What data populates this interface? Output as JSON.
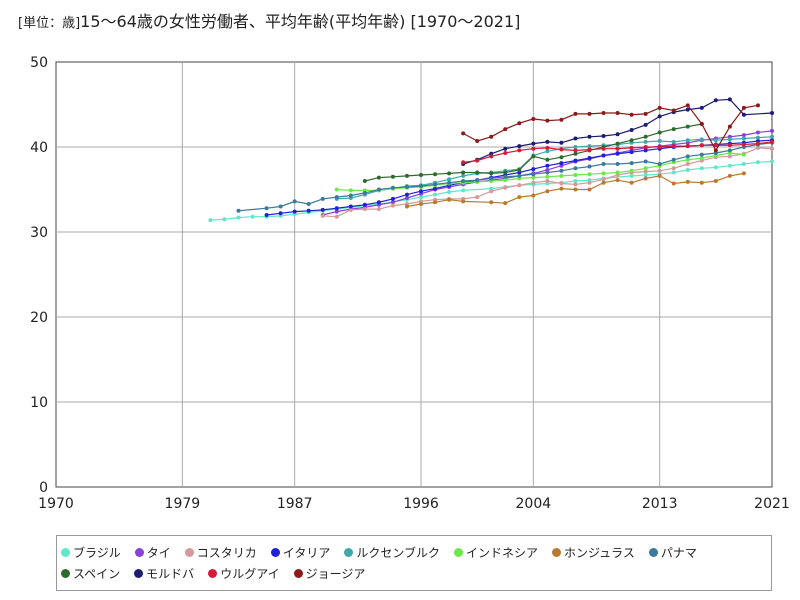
{
  "chart_data": {
    "type": "line",
    "title": "15〜64歳の女性労働者、平均年齢(平均年齢) [1970〜2021]",
    "unit_label": "[単位：歳]",
    "xlabel": "",
    "ylabel": "",
    "xlim": [
      1970,
      2021
    ],
    "ylim": [
      0,
      50
    ],
    "x_ticks": [
      1970,
      1979,
      1987,
      1996,
      2004,
      2013,
      2021
    ],
    "y_ticks": [
      0,
      10,
      20,
      30,
      40,
      50
    ],
    "grid": true,
    "legend_position": "bottom",
    "series": [
      {
        "name": "ブラジル",
        "color": "#5ee8c8",
        "x": [
          1981,
          1982,
          1983,
          1984,
          1985,
          1986,
          1987,
          1988,
          1989,
          1990,
          1992,
          1993,
          1995,
          1996,
          1997,
          1998,
          1999,
          2001,
          2002,
          2003,
          2004,
          2005,
          2006,
          2007,
          2008,
          2009,
          2011,
          2012,
          2013,
          2014,
          2015,
          2016,
          2017,
          2018,
          2019,
          2020,
          2021
        ],
        "y": [
          31.4,
          31.5,
          31.7,
          31.8,
          31.8,
          31.9,
          32.1,
          32.3,
          32.5,
          32.7,
          33.1,
          33.3,
          33.8,
          34.1,
          34.4,
          34.7,
          34.9,
          35.1,
          35.3,
          35.5,
          35.6,
          35.7,
          35.8,
          36.0,
          36.1,
          36.3,
          36.6,
          36.7,
          36.8,
          37.0,
          37.3,
          37.5,
          37.6,
          37.8,
          38.0,
          38.2,
          38.3
        ]
      },
      {
        "name": "タイ",
        "color": "#8a3fd8",
        "x": [
          1989,
          1990,
          1991,
          1992,
          1993,
          1994,
          1995,
          1996,
          1997,
          1998,
          1999,
          2000,
          2001,
          2002,
          2003,
          2004,
          2005,
          2006,
          2007,
          2008,
          2009,
          2010,
          2011,
          2012,
          2013,
          2014,
          2015,
          2016,
          2017,
          2018,
          2019,
          2020,
          2021
        ],
        "y": [
          32.0,
          32.4,
          32.7,
          32.9,
          33.2,
          33.5,
          34.0,
          34.5,
          35.0,
          35.3,
          35.6,
          35.9,
          36.1,
          36.3,
          36.6,
          36.9,
          37.3,
          37.8,
          38.3,
          38.6,
          39.0,
          39.3,
          39.6,
          39.9,
          40.1,
          40.3,
          40.5,
          40.8,
          41.0,
          41.2,
          41.4,
          41.7,
          41.9
        ]
      },
      {
        "name": "コスタリカ",
        "color": "#d49a9a",
        "x": [
          1989,
          1990,
          1991,
          1992,
          1993,
          1994,
          1995,
          1996,
          1997,
          1998,
          1999,
          2000,
          2001,
          2002,
          2003,
          2004,
          2005,
          2006,
          2007,
          2008,
          2009,
          2010,
          2011,
          2012,
          2013,
          2014,
          2015,
          2016,
          2017,
          2018,
          2019,
          2020,
          2021
        ],
        "y": [
          31.9,
          31.8,
          32.6,
          32.7,
          32.7,
          33.1,
          33.3,
          33.6,
          33.8,
          33.9,
          33.9,
          34.1,
          34.8,
          35.2,
          35.5,
          35.8,
          36.0,
          35.7,
          35.6,
          35.8,
          36.2,
          36.7,
          37.0,
          37.1,
          37.2,
          37.5,
          38.0,
          38.4,
          38.8,
          38.9,
          39.2,
          39.9,
          39.8
        ]
      },
      {
        "name": "イタリア",
        "color": "#2020d8",
        "x": [
          1985,
          1986,
          1987,
          1988,
          1989,
          1990,
          1991,
          1992,
          1993,
          1994,
          1995,
          1996,
          1997,
          1998,
          1999,
          2000,
          2001,
          2002,
          2003,
          2004,
          2005,
          2006,
          2007,
          2008,
          2009,
          2010,
          2011,
          2012,
          2013,
          2014,
          2015,
          2016,
          2017,
          2018,
          2019,
          2020,
          2021
        ],
        "y": [
          32.0,
          32.2,
          32.4,
          32.5,
          32.6,
          32.8,
          33.0,
          33.2,
          33.5,
          33.9,
          34.4,
          34.8,
          35.1,
          35.5,
          35.8,
          36.1,
          36.4,
          36.7,
          37.0,
          37.4,
          37.8,
          38.1,
          38.4,
          38.7,
          39.0,
          39.2,
          39.4,
          39.6,
          39.8,
          40.0,
          40.1,
          40.2,
          40.3,
          40.4,
          40.5,
          40.7,
          40.8
        ]
      },
      {
        "name": "ルクセンブルク",
        "color": "#40a8a8",
        "x": [
          1990,
          1991,
          1992,
          1993,
          1994,
          1995,
          1996,
          1997,
          1998,
          1999,
          2000,
          2001,
          2002,
          2003,
          2004,
          2005,
          2006,
          2007,
          2008,
          2009,
          2010,
          2011,
          2012,
          2013,
          2014,
          2015,
          2016,
          2017,
          2018,
          2019,
          2020,
          2021
        ],
        "y": [
          33.9,
          34.0,
          34.4,
          34.9,
          35.1,
          35.4,
          35.5,
          35.8,
          36.2,
          36.6,
          36.9,
          37.0,
          37.2,
          37.4,
          39.0,
          39.5,
          39.8,
          40.0,
          40.1,
          40.2,
          40.3,
          40.5,
          40.6,
          40.7,
          40.6,
          40.8,
          40.9,
          40.8,
          40.9,
          41.0,
          41.1,
          41.2
        ]
      },
      {
        "name": "インドネシア",
        "color": "#6ce84a",
        "x": [
          1990,
          1991,
          1992,
          1993,
          1994,
          1995,
          1996,
          1997,
          1998,
          1999,
          2000,
          2001,
          2002,
          2003,
          2004,
          2005,
          2006,
          2007,
          2008,
          2009,
          2010,
          2011,
          2012,
          2013,
          2014,
          2015,
          2016,
          2017,
          2018,
          2019
        ],
        "y": [
          35.0,
          34.9,
          34.9,
          34.9,
          35.1,
          35.2,
          35.3,
          35.5,
          35.7,
          35.8,
          35.9,
          36.0,
          36.1,
          36.3,
          36.4,
          36.5,
          36.6,
          36.7,
          36.8,
          36.9,
          37.0,
          37.2,
          37.5,
          37.8,
          38.2,
          38.5,
          38.7,
          39.0,
          39.3,
          39.1
        ]
      },
      {
        "name": "ホンジュラス",
        "color": "#b87a30",
        "x": [
          1995,
          1996,
          1997,
          1998,
          1999,
          2001,
          2002,
          2003,
          2004,
          2005,
          2006,
          2007,
          2008,
          2009,
          2010,
          2011,
          2012,
          2013,
          2014,
          2015,
          2016,
          2017,
          2018,
          2019
        ],
        "y": [
          33.0,
          33.3,
          33.5,
          33.8,
          33.6,
          33.5,
          33.4,
          34.1,
          34.3,
          34.8,
          35.1,
          35.0,
          35.0,
          35.8,
          36.1,
          35.8,
          36.3,
          36.6,
          35.7,
          35.9,
          35.8,
          36.0,
          36.6,
          36.9
        ]
      },
      {
        "name": "パナマ",
        "color": "#3a7a9e",
        "x": [
          1983,
          1985,
          1986,
          1987,
          1988,
          1989,
          1990,
          1991,
          1992,
          1993,
          1994,
          1995,
          1996,
          1997,
          1998,
          1999,
          2000,
          2001,
          2002,
          2003,
          2004,
          2005,
          2006,
          2007,
          2008,
          2009,
          2010,
          2011,
          2012,
          2013,
          2014,
          2015,
          2016,
          2017,
          2018,
          2019,
          2020,
          2021
        ],
        "y": [
          32.5,
          32.8,
          33.0,
          33.6,
          33.3,
          33.9,
          34.1,
          34.3,
          34.6,
          35.0,
          35.2,
          35.3,
          35.4,
          35.6,
          35.8,
          36.0,
          36.1,
          36.3,
          36.5,
          36.6,
          36.8,
          37.0,
          37.2,
          37.5,
          37.7,
          38.0,
          38.0,
          38.1,
          38.3,
          38.0,
          38.5,
          38.9,
          39.1,
          39.3,
          39.6,
          40.0,
          40.3,
          40.5
        ]
      },
      {
        "name": "スペイン",
        "color": "#2e6a2e",
        "x": [
          1992,
          1993,
          1994,
          1995,
          1996,
          1997,
          1998,
          1999,
          2000,
          2001,
          2002,
          2003,
          2004,
          2005,
          2006,
          2007,
          2008,
          2009,
          2010,
          2011,
          2012,
          2013,
          2014,
          2015,
          2016
        ],
        "y": [
          36.0,
          36.4,
          36.5,
          36.6,
          36.7,
          36.8,
          36.9,
          37.0,
          37.0,
          36.9,
          37.0,
          37.3,
          38.9,
          38.5,
          38.8,
          39.2,
          39.6,
          40.0,
          40.4,
          40.8,
          41.2,
          41.7,
          42.1,
          42.4,
          42.7
        ]
      },
      {
        "name": "モルドバ",
        "color": "#1c1c70",
        "x": [
          1999,
          2000,
          2001,
          2002,
          2003,
          2004,
          2005,
          2006,
          2007,
          2008,
          2009,
          2010,
          2011,
          2012,
          2013,
          2014,
          2015,
          2016,
          2017,
          2018,
          2019,
          2021
        ],
        "y": [
          38.0,
          38.5,
          39.2,
          39.8,
          40.1,
          40.4,
          40.6,
          40.5,
          41.0,
          41.2,
          41.3,
          41.5,
          42.0,
          42.6,
          43.6,
          44.1,
          44.4,
          44.6,
          45.5,
          45.6,
          43.8,
          44.0
        ]
      },
      {
        "name": "ウルグアイ",
        "color": "#d81a3a",
        "x": [
          1999,
          2000,
          2001,
          2002,
          2003,
          2004,
          2005,
          2006,
          2007,
          2008,
          2009,
          2010,
          2011,
          2012,
          2013,
          2014,
          2015,
          2016,
          2017,
          2018,
          2019,
          2020,
          2021
        ],
        "y": [
          38.2,
          38.4,
          38.9,
          39.3,
          39.6,
          39.8,
          39.9,
          39.7,
          39.6,
          39.7,
          39.8,
          39.8,
          39.9,
          40.0,
          40.0,
          40.1,
          40.1,
          40.2,
          40.2,
          40.2,
          40.3,
          40.4,
          40.6
        ]
      },
      {
        "name": "ジョージア",
        "color": "#8b1a1a",
        "x": [
          1999,
          2000,
          2001,
          2002,
          2003,
          2004,
          2005,
          2006,
          2007,
          2008,
          2009,
          2010,
          2011,
          2012,
          2013,
          2014,
          2015,
          2016,
          2017,
          2018,
          2019,
          2020
        ],
        "y": [
          41.6,
          40.7,
          41.2,
          42.1,
          42.8,
          43.3,
          43.1,
          43.2,
          43.9,
          43.9,
          44.0,
          44.0,
          43.8,
          43.9,
          44.6,
          44.3,
          44.9,
          42.7,
          39.6,
          42.4,
          44.6,
          44.9
        ]
      }
    ]
  }
}
